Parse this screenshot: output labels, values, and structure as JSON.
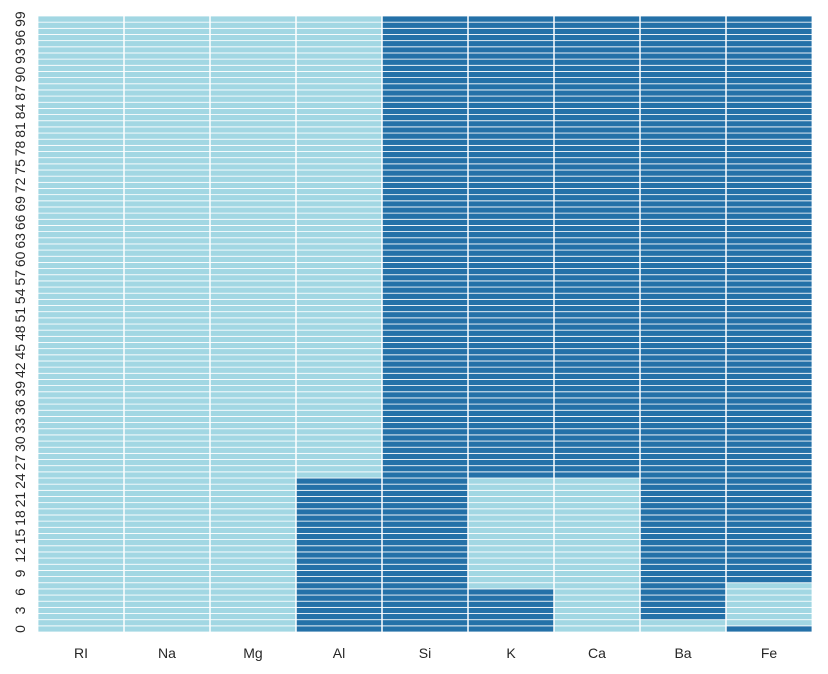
{
  "chart_data": {
    "type": "heatmap",
    "x_categories": [
      "RI",
      "Na",
      "Mg",
      "Al",
      "Si",
      "K",
      "Ca",
      "Ba",
      "Fe"
    ],
    "y_tick_labels": [
      "0",
      "3",
      "6",
      "9",
      "12",
      "15",
      "18",
      "21",
      "24",
      "27",
      "30",
      "33",
      "36",
      "39",
      "42",
      "45",
      "48",
      "51",
      "54",
      "57",
      "60",
      "63",
      "66",
      "69",
      "72",
      "75",
      "78",
      "81",
      "84",
      "87",
      "90",
      "93",
      "96",
      "99"
    ],
    "y_tick_step": 3,
    "row_count": 100,
    "row_order": "bottom-to-top",
    "values_encoding": "binary",
    "colors": {
      "0": "#a2d7e3",
      "1": "#2471a8"
    },
    "grid_lines": true,
    "grid_color": "#ffffff",
    "columns": {
      "RI": [],
      "Na": [],
      "Mg": [],
      "Al": [
        [
          0,
          24
        ]
      ],
      "Si": [
        [
          0,
          99
        ]
      ],
      "K": [
        [
          0,
          6
        ],
        [
          25,
          99
        ]
      ],
      "Ca": [
        [
          25,
          99
        ]
      ],
      "Ba": [
        [
          2,
          99
        ]
      ],
      "Fe": [
        [
          0,
          0
        ],
        [
          8,
          99
        ]
      ]
    },
    "columns_note_format": "ranges of row indices (inclusive) with value 1; all other rows are 0"
  }
}
